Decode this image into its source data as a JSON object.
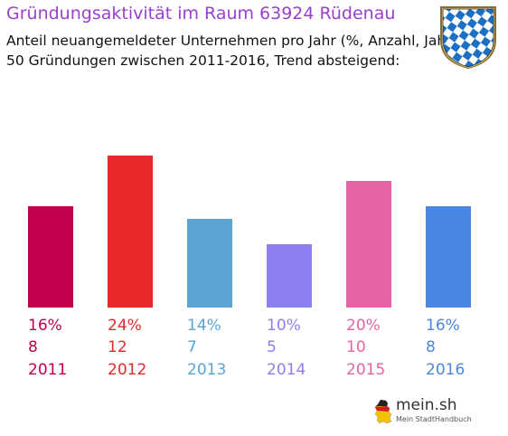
{
  "header": {
    "title": "Gründungsaktivität im Raum 63924 Rüdenau",
    "subtitle_line1": "Anteil neuangemeldeter Unternehmen pro Jahr (%, Anzahl, Jahr)",
    "subtitle_line2": "50 Gründungen zwischen 2011-2016, Trend absteigend:"
  },
  "crest": {
    "icon": "bavaria-crest-icon",
    "colors": [
      "#1d6fc4",
      "#ffffff"
    ]
  },
  "branding": {
    "name": "mein.sh",
    "tagline": "Mein StadtHandbuch",
    "icon": "germany-map-icon"
  },
  "chart_data": {
    "type": "bar",
    "title": "",
    "xlabel": "",
    "ylabel": "",
    "grid": false,
    "categories": [
      "2011",
      "2012",
      "2013",
      "2014",
      "2015",
      "2016"
    ],
    "values": [
      16,
      24,
      14,
      10,
      20,
      16
    ],
    "percent_labels": [
      "16%",
      "24%",
      "14%",
      "10%",
      "20%",
      "16%"
    ],
    "counts": [
      8,
      12,
      7,
      5,
      10,
      8
    ],
    "colors": [
      "#c2004f",
      "#e8292a",
      "#5ba4d6",
      "#8c7ff2",
      "#e664a6",
      "#4a86e4"
    ],
    "ylim": [
      0,
      24
    ]
  }
}
